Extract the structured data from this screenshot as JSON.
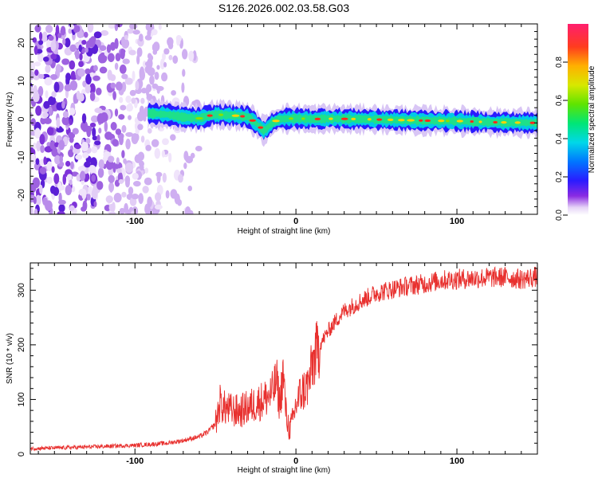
{
  "title": "S126.2026.002.03.58.G03",
  "chart_data": [
    {
      "type": "heatmap",
      "name": "spectrogram",
      "xlabel": "Height of straight line (km)",
      "ylabel": "Frequency (Hz)",
      "xlim": [
        -165,
        150
      ],
      "ylim": [
        -25,
        25
      ],
      "x_ticks": [
        -100,
        0,
        100
      ],
      "x_tick_labels": [
        "-100",
        "0",
        "100"
      ],
      "y_ticks": [
        -20,
        -10,
        0,
        10,
        20
      ],
      "y_tick_labels": [
        "-20",
        "-10",
        "0",
        "10",
        "20"
      ],
      "colorbar": {
        "label": "Normalized spectral amplitude",
        "range": [
          0,
          1
        ],
        "ticks": [
          0.0,
          0.2,
          0.4,
          0.6,
          0.8
        ],
        "tick_labels": [
          "0.0",
          "0.2",
          "0.4",
          "0.6",
          "0.8"
        ]
      },
      "ridge": {
        "x": [
          -92,
          -80,
          -70,
          -60,
          -55,
          -50,
          -40,
          -30,
          -25,
          -20,
          -18,
          -15,
          -10,
          -5,
          0,
          10,
          20,
          40,
          60,
          80,
          100,
          120,
          150
        ],
        "y": [
          1.5,
          1.2,
          0.5,
          0.2,
          0.8,
          1.2,
          1.0,
          0.6,
          -1.0,
          -3.0,
          -2.5,
          -1.0,
          0.0,
          0.1,
          0.2,
          0.0,
          0.1,
          0.0,
          -0.2,
          -0.4,
          -0.5,
          -0.8,
          -1.0
        ]
      },
      "noise_region_x": [
        -165,
        -60
      ]
    },
    {
      "type": "line",
      "name": "snr",
      "xlabel": "Height of straight line (km)",
      "ylabel": "SNR (10 * v/v)",
      "xlim": [
        -165,
        150
      ],
      "ylim": [
        0,
        350
      ],
      "x_ticks": [
        -100,
        0,
        100
      ],
      "x_tick_labels": [
        "-100",
        "0",
        "100"
      ],
      "y_ticks": [
        0,
        100,
        200,
        300
      ],
      "y_tick_labels": [
        "0",
        "100",
        "200",
        "300"
      ],
      "color": "#e8302e",
      "series": [
        {
          "name": "SNR",
          "x": [
            -165,
            -140,
            -120,
            -100,
            -80,
            -70,
            -60,
            -55,
            -50,
            -47,
            -45,
            -40,
            -35,
            -30,
            -25,
            -20,
            -15,
            -12,
            -10,
            -8,
            -6,
            -4,
            -2,
            0,
            2,
            4,
            6,
            8,
            10,
            12,
            14,
            16,
            18,
            20,
            25,
            30,
            40,
            50,
            60,
            70,
            80,
            90,
            100,
            110,
            120,
            130,
            140,
            150
          ],
          "values": [
            10,
            12,
            14,
            16,
            20,
            25,
            32,
            40,
            55,
            95,
            85,
            80,
            78,
            85,
            92,
            100,
            110,
            135,
            90,
            150,
            70,
            45,
            60,
            90,
            105,
            115,
            120,
            130,
            160,
            180,
            195,
            205,
            215,
            225,
            245,
            262,
            280,
            295,
            302,
            308,
            312,
            318,
            320,
            322,
            323,
            324,
            320,
            325
          ]
        }
      ]
    }
  ]
}
